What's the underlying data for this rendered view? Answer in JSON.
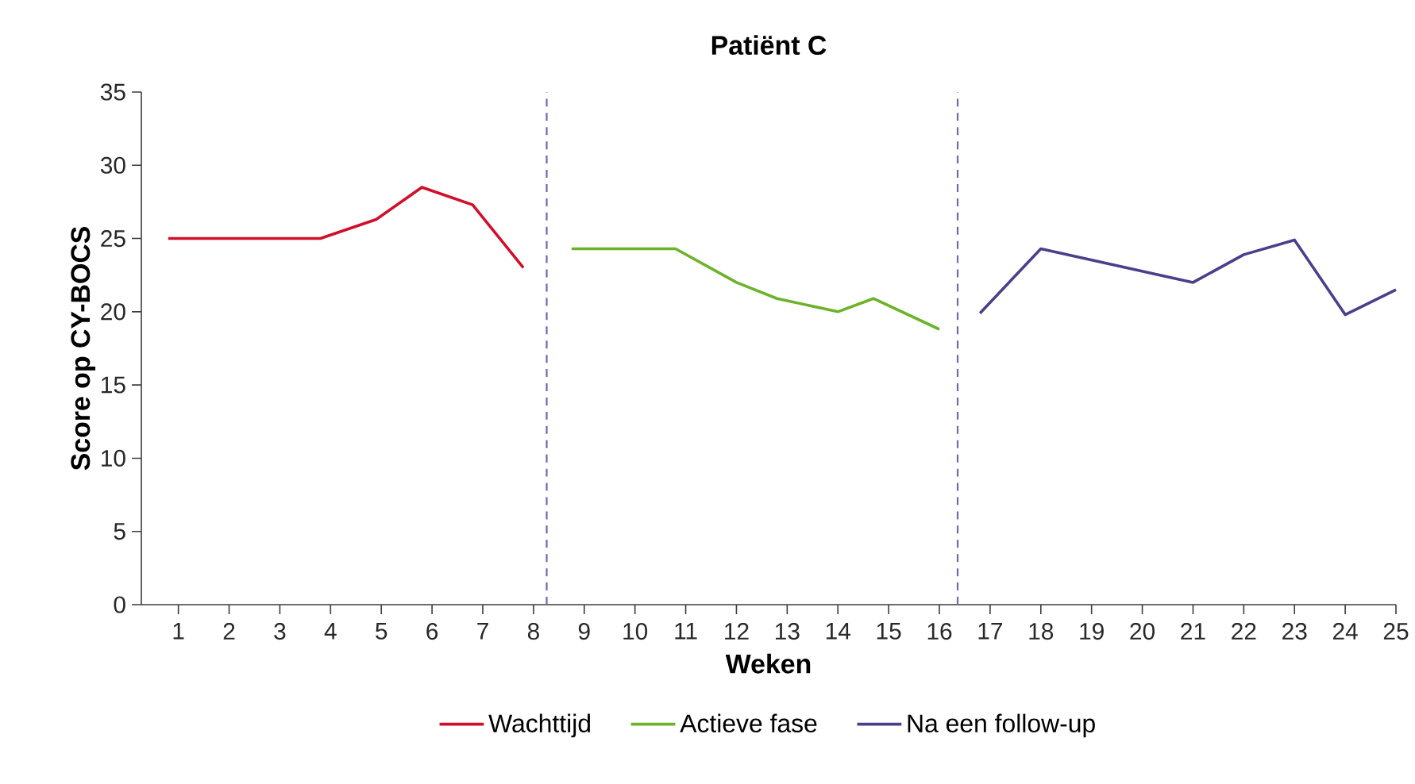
{
  "chart_data": {
    "type": "line",
    "title": "Patiënt C",
    "xlabel": "Weken",
    "ylabel": "Score op CY-BOCS",
    "xlim": [
      0.27,
      25
    ],
    "xticks": [
      1,
      2,
      3,
      4,
      5,
      6,
      7,
      8,
      9,
      10,
      11,
      12,
      13,
      14,
      15,
      16,
      17,
      18,
      19,
      20,
      21,
      22,
      23,
      24,
      25
    ],
    "ylim": [
      0,
      35
    ],
    "yticks": [
      0,
      5,
      10,
      15,
      20,
      25,
      30,
      35
    ],
    "series": [
      {
        "name": "Wachttijd",
        "color": "#d0102a",
        "x": [
          0.8,
          3.8,
          4.9,
          5.8,
          6.8,
          7.8
        ],
        "values": [
          25,
          25,
          26.3,
          28.5,
          27.3,
          23
        ]
      },
      {
        "name": "Actieve fase",
        "color": "#6cb32b",
        "x": [
          8.75,
          10.8,
          12,
          12.8,
          14,
          14.7,
          16
        ],
        "values": [
          24.3,
          24.3,
          22,
          20.9,
          20,
          20.9,
          18.8
        ]
      },
      {
        "name": "Na een follow-up",
        "color": "#4b3f8c",
        "x": [
          16.8,
          18,
          21,
          22,
          23,
          24,
          25
        ],
        "values": [
          19.9,
          24.3,
          22,
          23.9,
          24.9,
          19.8,
          21.5
        ]
      }
    ],
    "ref_lines": [
      {
        "axis": "x",
        "value": 8.26,
        "color": "#6f6aa8",
        "line_style": "dashed"
      },
      {
        "axis": "x",
        "value": 16.36,
        "color": "#6f6aa8",
        "line_style": "dashed"
      }
    ],
    "legend": "bottom",
    "marker": "none",
    "line_style": "solid"
  }
}
